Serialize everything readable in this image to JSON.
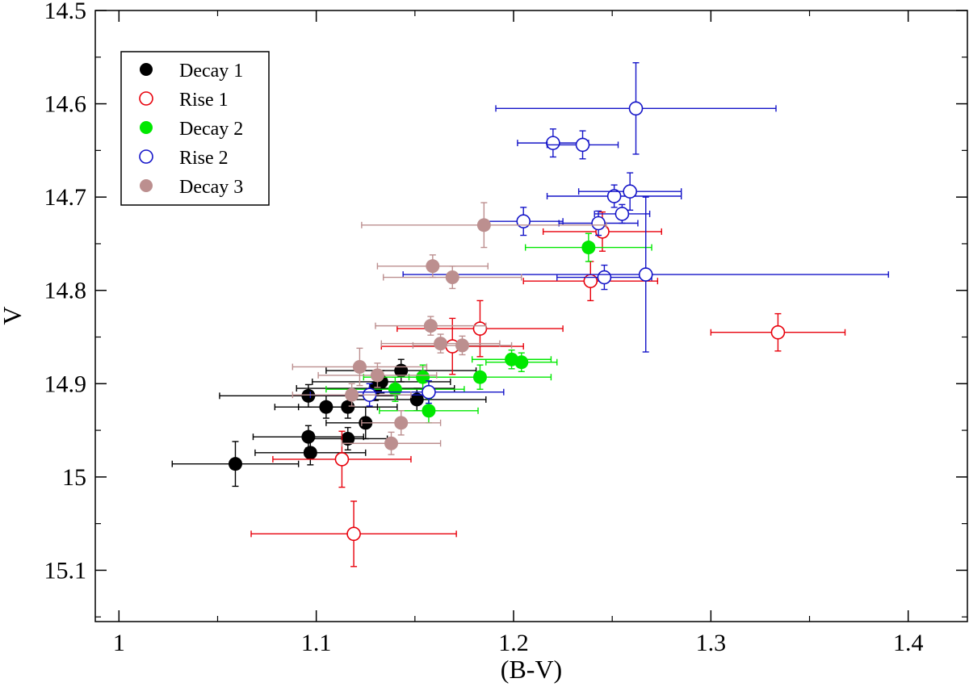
{
  "chart_data": {
    "type": "scatter",
    "title": "",
    "xlabel": "(B-V)",
    "ylabel": "V",
    "xlim": [
      0.988,
      1.43
    ],
    "ylim": [
      15.155,
      14.5
    ],
    "y_inverted": true,
    "grid": false,
    "legend_position": "top-left",
    "x_ticks": [
      {
        "value": 1.0,
        "label": "1"
      },
      {
        "value": 1.1,
        "label": "1.1"
      },
      {
        "value": 1.2,
        "label": "1.2"
      },
      {
        "value": 1.3,
        "label": "1.3"
      },
      {
        "value": 1.4,
        "label": "1.4"
      }
    ],
    "y_ticks": [
      {
        "value": 14.5,
        "label": "14.5"
      },
      {
        "value": 14.6,
        "label": "14.6"
      },
      {
        "value": 14.7,
        "label": "14.7"
      },
      {
        "value": 14.8,
        "label": "14.8"
      },
      {
        "value": 14.9,
        "label": "14.9"
      },
      {
        "value": 15.0,
        "label": "15"
      },
      {
        "value": 15.1,
        "label": "15.1"
      }
    ],
    "series": [
      {
        "name": "Decay 1",
        "color": "#000000",
        "marker": "filled-circle",
        "points": [
          {
            "x": 1.059,
            "y": 14.986,
            "xerr": 0.032,
            "yerr": 0.024
          },
          {
            "x": 1.096,
            "y": 14.913,
            "xerr": 0.045,
            "yerr": 0.012
          },
          {
            "x": 1.096,
            "y": 14.957,
            "xerr": 0.028,
            "yerr": 0.012
          },
          {
            "x": 1.097,
            "y": 14.974,
            "xerr": 0.028,
            "yerr": 0.013
          },
          {
            "x": 1.105,
            "y": 14.925,
            "xerr": 0.026,
            "yerr": 0.012
          },
          {
            "x": 1.116,
            "y": 14.925,
            "xerr": 0.025,
            "yerr": 0.012
          },
          {
            "x": 1.116,
            "y": 14.959,
            "xerr": 0.02,
            "yerr": 0.012
          },
          {
            "x": 1.125,
            "y": 14.942,
            "xerr": 0.02,
            "yerr": 0.017
          },
          {
            "x": 1.13,
            "y": 14.905,
            "xerr": 0.04,
            "yerr": 0.013
          },
          {
            "x": 1.133,
            "y": 14.898,
            "xerr": 0.035,
            "yerr": 0.012
          },
          {
            "x": 1.143,
            "y": 14.886,
            "xerr": 0.038,
            "yerr": 0.012
          },
          {
            "x": 1.151,
            "y": 14.917,
            "xerr": 0.035,
            "yerr": 0.012
          }
        ]
      },
      {
        "name": "Rise 1",
        "color": "#e8000b",
        "marker": "open-circle",
        "points": [
          {
            "x": 1.119,
            "y": 15.061,
            "xerr": 0.052,
            "yerr": 0.035
          },
          {
            "x": 1.113,
            "y": 14.981,
            "xerr": 0.035,
            "yerr": 0.03
          },
          {
            "x": 1.169,
            "y": 14.86,
            "xerr": 0.036,
            "yerr": 0.03
          },
          {
            "x": 1.183,
            "y": 14.841,
            "xerr": 0.042,
            "yerr": 0.03
          },
          {
            "x": 1.239,
            "y": 14.79,
            "xerr": 0.034,
            "yerr": 0.021
          },
          {
            "x": 1.245,
            "y": 14.737,
            "xerr": 0.03,
            "yerr": 0.021
          },
          {
            "x": 1.334,
            "y": 14.845,
            "xerr": 0.034,
            "yerr": 0.02
          }
        ]
      },
      {
        "name": "Decay 2",
        "color": "#00e800",
        "marker": "filled-circle",
        "points": [
          {
            "x": 1.14,
            "y": 14.906,
            "xerr": 0.035,
            "yerr": 0.013
          },
          {
            "x": 1.154,
            "y": 14.893,
            "xerr": 0.03,
            "yerr": 0.013
          },
          {
            "x": 1.157,
            "y": 14.929,
            "xerr": 0.025,
            "yerr": 0.013
          },
          {
            "x": 1.183,
            "y": 14.893,
            "xerr": 0.036,
            "yerr": 0.013
          },
          {
            "x": 1.199,
            "y": 14.874,
            "xerr": 0.02,
            "yerr": 0.01
          },
          {
            "x": 1.204,
            "y": 14.877,
            "xerr": 0.018,
            "yerr": 0.01
          },
          {
            "x": 1.238,
            "y": 14.754,
            "xerr": 0.032,
            "yerr": 0.015
          }
        ]
      },
      {
        "name": "Rise 2",
        "color": "#1414c8",
        "marker": "open-circle",
        "points": [
          {
            "x": 1.127,
            "y": 14.912,
            "xerr": 0.03,
            "yerr": 0.012
          },
          {
            "x": 1.157,
            "y": 14.909,
            "xerr": 0.038,
            "yerr": 0.012
          },
          {
            "x": 1.205,
            "y": 14.726,
            "xerr": 0.02,
            "yerr": 0.015
          },
          {
            "x": 1.22,
            "y": 14.642,
            "xerr": 0.018,
            "yerr": 0.015
          },
          {
            "x": 1.235,
            "y": 14.644,
            "xerr": 0.018,
            "yerr": 0.015
          },
          {
            "x": 1.243,
            "y": 14.728,
            "xerr": 0.02,
            "yerr": 0.013
          },
          {
            "x": 1.246,
            "y": 14.786,
            "xerr": 0.024,
            "yerr": 0.013
          },
          {
            "x": 1.251,
            "y": 14.699,
            "xerr": 0.034,
            "yerr": 0.012
          },
          {
            "x": 1.255,
            "y": 14.718,
            "xerr": 0.014,
            "yerr": 0.01
          },
          {
            "x": 1.259,
            "y": 14.694,
            "xerr": 0.026,
            "yerr": 0.02
          },
          {
            "x": 1.262,
            "y": 14.605,
            "xerr": 0.071,
            "yerr": 0.049
          },
          {
            "x": 1.267,
            "y": 14.783,
            "xerr": 0.123,
            "yerr": 0.083
          }
        ]
      },
      {
        "name": "Decay 3",
        "color": "#bc8f8f",
        "marker": "filled-circle",
        "points": [
          {
            "x": 1.118,
            "y": 14.912,
            "xerr": 0.03,
            "yerr": 0.012
          },
          {
            "x": 1.122,
            "y": 14.882,
            "xerr": 0.034,
            "yerr": 0.02
          },
          {
            "x": 1.131,
            "y": 14.891,
            "xerr": 0.03,
            "yerr": 0.013
          },
          {
            "x": 1.138,
            "y": 14.964,
            "xerr": 0.025,
            "yerr": 0.012
          },
          {
            "x": 1.143,
            "y": 14.942,
            "xerr": 0.02,
            "yerr": 0.013
          },
          {
            "x": 1.158,
            "y": 14.838,
            "xerr": 0.028,
            "yerr": 0.01
          },
          {
            "x": 1.159,
            "y": 14.774,
            "xerr": 0.028,
            "yerr": 0.012
          },
          {
            "x": 1.163,
            "y": 14.857,
            "xerr": 0.03,
            "yerr": 0.01
          },
          {
            "x": 1.169,
            "y": 14.786,
            "xerr": 0.035,
            "yerr": 0.012
          },
          {
            "x": 1.174,
            "y": 14.859,
            "xerr": 0.025,
            "yerr": 0.01
          },
          {
            "x": 1.185,
            "y": 14.73,
            "xerr": 0.062,
            "yerr": 0.024
          }
        ]
      }
    ]
  }
}
